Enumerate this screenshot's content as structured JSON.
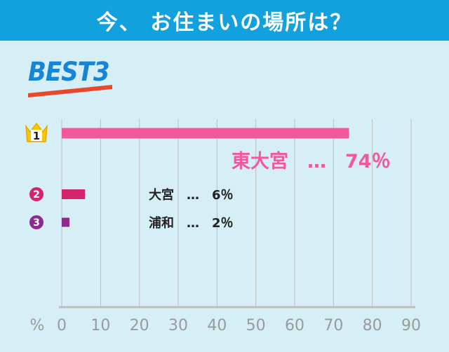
{
  "header": {
    "title": "今、 お住まいの場所は？"
  },
  "badge": {
    "text": "BEST3"
  },
  "ranks": [
    {
      "number": "1",
      "icon": "crown-icon",
      "color": "#f5c800"
    },
    {
      "number": "2",
      "icon": "circle-number-icon",
      "color": "#d6246a"
    },
    {
      "number": "3",
      "icon": "circle-number-icon",
      "color": "#8b2a8f"
    }
  ],
  "labels": [
    {
      "text": "東大宮　…　74％",
      "color": "#f0599b"
    },
    {
      "text": "大宮　…　6％",
      "color": "#222222"
    },
    {
      "text": "浦和　…　2％",
      "color": "#222222"
    }
  ],
  "chart_data": {
    "type": "bar",
    "orientation": "horizontal",
    "categories": [
      "東大宮",
      "大宮",
      "浦和"
    ],
    "values": [
      74,
      6,
      2
    ],
    "colors": [
      "#f0599b",
      "#d6246a",
      "#8b2a8f"
    ],
    "xlim": [
      0,
      90
    ],
    "x_unit_label": "%",
    "ticks": [
      "0",
      "10",
      "20",
      "30",
      "40",
      "50",
      "60",
      "70",
      "80",
      "90"
    ],
    "grid": true
  }
}
